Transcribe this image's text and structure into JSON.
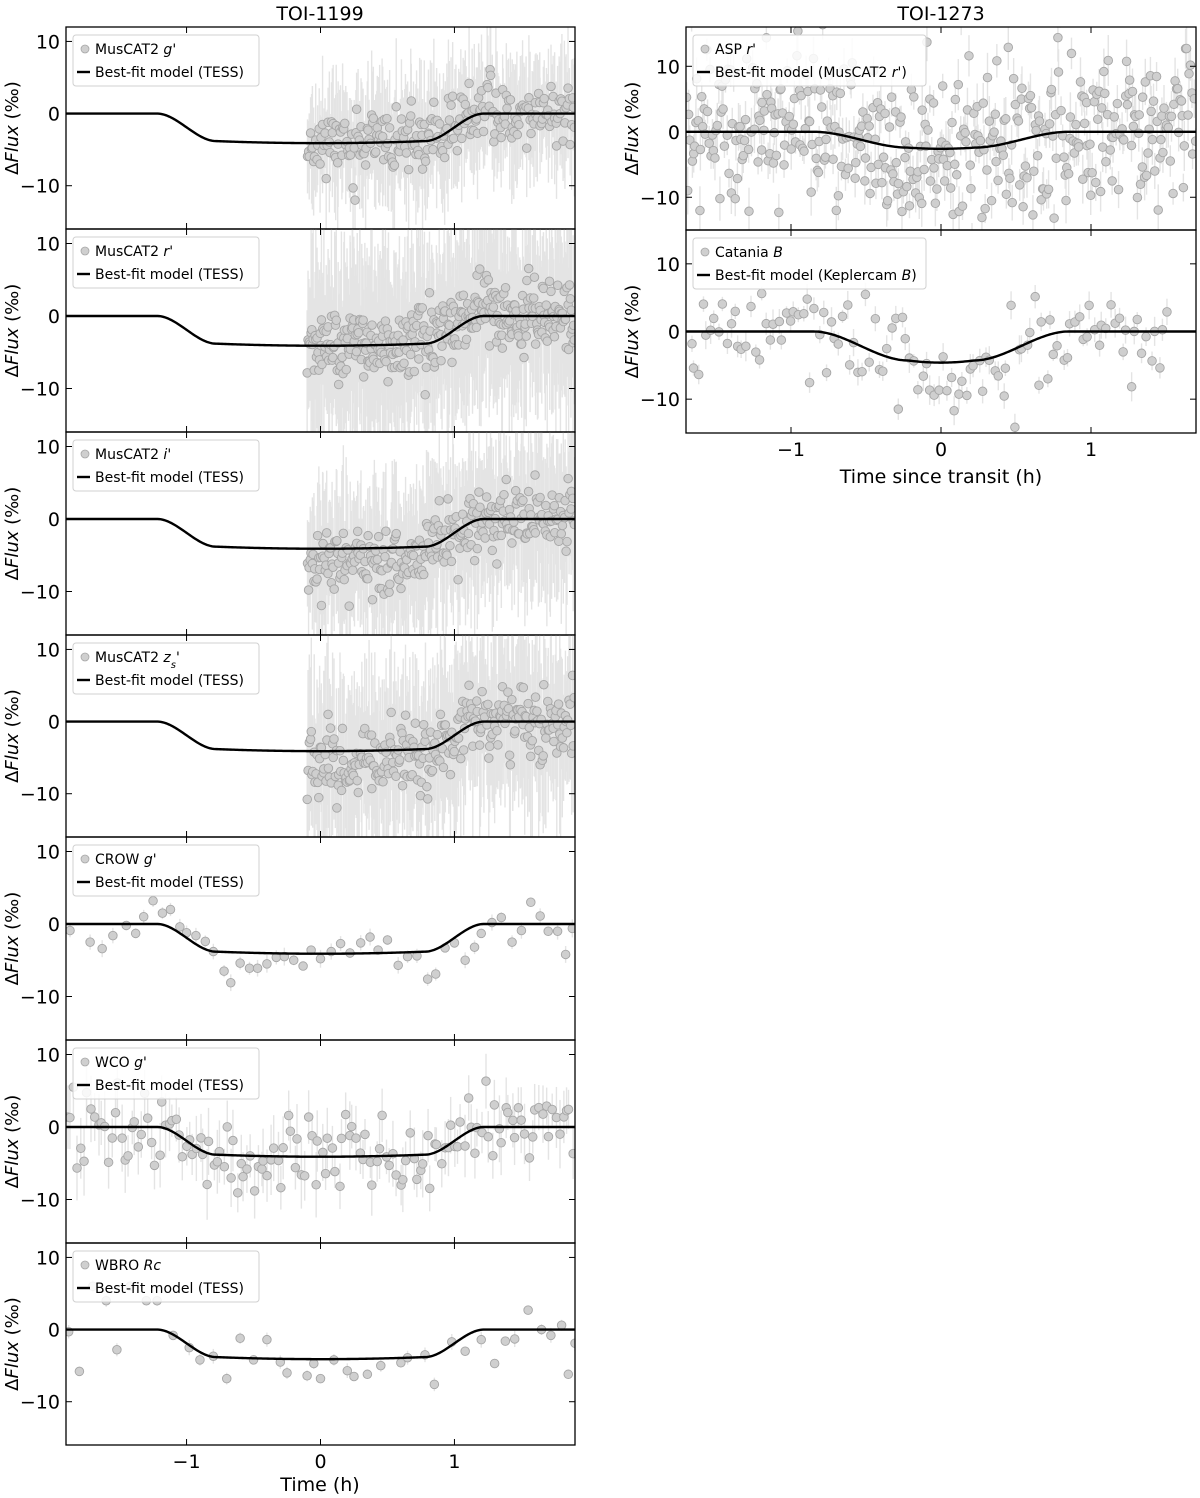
{
  "figure": {
    "left_column_title": "TOI-1199",
    "right_column_title": "TOI-1273",
    "left_xlabel": "Time (h)",
    "right_xlabel": "Time since transit (h)",
    "ylabel_prefix": "Δ",
    "ylabel_var": "Flux",
    "ylabel_unit": " (‰)"
  },
  "colors": {
    "points": "#cfcfcf",
    "point_edge": "#a6a6a6",
    "errorbars": "#e4e4e4",
    "model": "#000000"
  },
  "chart_data": [
    {
      "type": "scatter",
      "column": "TOI-1199",
      "legend": {
        "data_label": "MusCAT2 ",
        "data_label_em": "g",
        "data_label_suffix": "'",
        "model_label": "Best-fit model (TESS)"
      },
      "legend_position": "top-left",
      "xlim": [
        -1.9,
        1.9
      ],
      "ylim": [
        -16,
        12
      ],
      "xticks": [],
      "yticks": [
        -10,
        0,
        10
      ],
      "model": {
        "depth": -4.1,
        "ingress_start": -1.22,
        "ingress_end": -0.78,
        "egress_start": 0.78,
        "egress_end": 1.22
      },
      "data_range": [
        -0.1,
        1.9
      ],
      "points_count": 260,
      "scatter": 2.1,
      "error": 7,
      "seed": 11
    },
    {
      "type": "scatter",
      "column": "TOI-1199",
      "legend": {
        "data_label": "MusCAT2 ",
        "data_label_em": "r",
        "data_label_suffix": "'",
        "model_label": "Best-fit model (TESS)"
      },
      "legend_position": "top-left",
      "xlim": [
        -1.9,
        1.9
      ],
      "ylim": [
        -16,
        12
      ],
      "xticks": [],
      "yticks": [
        -10,
        0,
        10
      ],
      "model": {
        "depth": -4.1,
        "ingress_start": -1.22,
        "ingress_end": -0.78,
        "egress_start": 0.78,
        "egress_end": 1.22
      },
      "data_range": [
        -0.1,
        1.9
      ],
      "points_count": 360,
      "scatter": 2.4,
      "error": 11,
      "seed": 23
    },
    {
      "type": "scatter",
      "column": "TOI-1199",
      "legend": {
        "data_label": "MusCAT2 ",
        "data_label_em": "i",
        "data_label_suffix": "'",
        "model_label": "Best-fit model (TESS)"
      },
      "legend_position": "top-left",
      "xlim": [
        -1.9,
        1.9
      ],
      "ylim": [
        -16,
        12
      ],
      "xticks": [],
      "yticks": [
        -10,
        0,
        10
      ],
      "model": {
        "depth": -4.1,
        "ingress_start": -1.22,
        "ingress_end": -0.78,
        "egress_start": 0.78,
        "egress_end": 1.22
      },
      "data_range": [
        -0.1,
        1.9
      ],
      "points_count": 290,
      "scatter": 2.3,
      "offset": -2.2,
      "error": 9,
      "seed": 37
    },
    {
      "type": "scatter",
      "column": "TOI-1199",
      "legend": {
        "data_label": "MusCAT2 ",
        "data_label_em": "z",
        "data_label_sub": "s",
        "data_label_suffix": "'",
        "model_label": "Best-fit model (TESS)"
      },
      "legend_position": "top-left",
      "xlim": [
        -1.9,
        1.9
      ],
      "ylim": [
        -16,
        12
      ],
      "xticks": [],
      "yticks": [
        -10,
        0,
        10
      ],
      "model": {
        "depth": -4.1,
        "ingress_start": -1.22,
        "ingress_end": -0.78,
        "egress_start": 0.78,
        "egress_end": 1.22
      },
      "data_range": [
        -0.1,
        1.9
      ],
      "points_count": 290,
      "scatter": 2.4,
      "offset": -2.0,
      "error": 10,
      "seed": 51
    },
    {
      "type": "scatter",
      "column": "TOI-1199",
      "legend": {
        "data_label": "CROW ",
        "data_label_em": "g",
        "data_label_suffix": "'",
        "model_label": "Best-fit model (TESS)"
      },
      "legend_position": "top-left",
      "xlim": [
        -1.9,
        1.9
      ],
      "ylim": [
        -16,
        12
      ],
      "xticks": [],
      "yticks": [
        -10,
        0,
        10
      ],
      "model": {
        "depth": -4.1,
        "ingress_start": -1.22,
        "ingress_end": -0.78,
        "egress_start": 0.78,
        "egress_end": 1.22
      },
      "points": [
        [
          -1.87,
          -0.9
        ],
        [
          -1.72,
          -2.5
        ],
        [
          -1.63,
          -3.4
        ],
        [
          -1.55,
          -1.6
        ],
        [
          -1.45,
          -0.2
        ],
        [
          -1.38,
          -1.3
        ],
        [
          -1.32,
          1.0
        ],
        [
          -1.25,
          3.2
        ],
        [
          -1.18,
          1.5
        ],
        [
          -1.12,
          2.0
        ],
        [
          -1.05,
          -0.4
        ],
        [
          -1.0,
          -1.2
        ],
        [
          -0.93,
          -1.6
        ],
        [
          -0.86,
          -2.4
        ],
        [
          -0.8,
          -3.8
        ],
        [
          -0.72,
          -6.5
        ],
        [
          -0.67,
          -8.1
        ],
        [
          -0.6,
          -5.4
        ],
        [
          -0.53,
          -6.1
        ],
        [
          -0.47,
          -6.1
        ],
        [
          -0.4,
          -5.5
        ],
        [
          -0.33,
          -4.6
        ],
        [
          -0.27,
          -4.5
        ],
        [
          -0.2,
          -5.0
        ],
        [
          -0.13,
          -5.8
        ],
        [
          -0.07,
          -3.6
        ],
        [
          0.0,
          -4.8
        ],
        [
          0.08,
          -3.8
        ],
        [
          0.15,
          -2.7
        ],
        [
          0.22,
          -4.0
        ],
        [
          0.3,
          -2.6
        ],
        [
          0.37,
          -1.8
        ],
        [
          0.43,
          -3.6
        ],
        [
          0.5,
          -2.2
        ],
        [
          0.58,
          -5.7
        ],
        [
          0.65,
          -4.5
        ],
        [
          0.72,
          -4.4
        ],
        [
          0.8,
          -7.6
        ],
        [
          0.86,
          -6.9
        ],
        [
          0.93,
          -3.3
        ],
        [
          1.0,
          -2.6
        ],
        [
          1.08,
          -5.0
        ],
        [
          1.15,
          -3.2
        ],
        [
          1.2,
          -1.3
        ],
        [
          1.28,
          0.2
        ],
        [
          1.35,
          0.9
        ],
        [
          1.43,
          -2.5
        ],
        [
          1.5,
          -0.9
        ],
        [
          1.57,
          3.0
        ],
        [
          1.64,
          1.1
        ],
        [
          1.7,
          -1.0
        ],
        [
          1.77,
          -1.0
        ],
        [
          1.83,
          -4.2
        ],
        [
          1.88,
          -0.6
        ]
      ],
      "error": 0.9,
      "seed": 61
    },
    {
      "type": "scatter",
      "column": "TOI-1199",
      "legend": {
        "data_label": "WCO ",
        "data_label_em": "g",
        "data_label_suffix": "'",
        "model_label": "Best-fit model (TESS)"
      },
      "legend_position": "top-left",
      "xlim": [
        -1.9,
        1.9
      ],
      "ylim": [
        -16,
        12
      ],
      "xticks": [],
      "yticks": [
        -10,
        0,
        10
      ],
      "model": {
        "depth": -4.1,
        "ingress_start": -1.22,
        "ingress_end": -0.78,
        "egress_start": 0.78,
        "egress_end": 1.22
      },
      "data_range": [
        -1.9,
        1.9
      ],
      "points_count": 150,
      "scatter": 2.8,
      "error": 3.5,
      "seed": 73
    },
    {
      "type": "scatter",
      "column": "TOI-1199",
      "legend": {
        "data_label": "WBRO ",
        "data_label_em": "Rc",
        "data_label_suffix": "",
        "model_label": "Best-fit model (TESS)"
      },
      "legend_position": "top-left",
      "xlim": [
        -1.9,
        1.9
      ],
      "ylim": [
        -16,
        12
      ],
      "xticks": [
        -1,
        0,
        1
      ],
      "yticks": [
        -10,
        0,
        10
      ],
      "model": {
        "depth": -4.1,
        "ingress_start": -1.22,
        "ingress_end": -0.78,
        "egress_start": 0.78,
        "egress_end": 1.22
      },
      "points": [
        [
          -1.88,
          -0.3
        ],
        [
          -1.8,
          -5.8
        ],
        [
          -1.7,
          6.0
        ],
        [
          -1.6,
          4.0
        ],
        [
          -1.52,
          -2.8
        ],
        [
          -1.42,
          6.0
        ],
        [
          -1.3,
          4.0
        ],
        [
          -1.22,
          4.0
        ],
        [
          -1.1,
          -0.8
        ],
        [
          -0.98,
          -2.5
        ],
        [
          -0.9,
          -4.2
        ],
        [
          -0.8,
          -3.7
        ],
        [
          -0.7,
          -6.8
        ],
        [
          -0.6,
          -1.2
        ],
        [
          -0.5,
          -4.2
        ],
        [
          -0.4,
          -1.4
        ],
        [
          -0.3,
          -4.5
        ],
        [
          -0.25,
          -6.0
        ],
        [
          -0.1,
          -6.4
        ],
        [
          -0.05,
          -4.7
        ],
        [
          0.0,
          -6.8
        ],
        [
          0.1,
          -4.2
        ],
        [
          0.2,
          -5.7
        ],
        [
          0.25,
          -6.5
        ],
        [
          0.35,
          -6.2
        ],
        [
          0.45,
          -5.0
        ],
        [
          0.6,
          -4.6
        ],
        [
          0.65,
          -3.9
        ],
        [
          0.78,
          -3.5
        ],
        [
          0.85,
          -7.6
        ],
        [
          0.98,
          -1.7
        ],
        [
          1.08,
          -3.0
        ],
        [
          1.2,
          -1.4
        ],
        [
          1.3,
          -4.7
        ],
        [
          1.38,
          -1.6
        ],
        [
          1.45,
          -1.3
        ],
        [
          1.55,
          2.7
        ],
        [
          1.65,
          0.0
        ],
        [
          1.72,
          -0.8
        ],
        [
          1.8,
          0.6
        ],
        [
          1.85,
          -6.2
        ],
        [
          1.9,
          -1.9
        ]
      ],
      "error": 0.8,
      "seed": 83
    },
    {
      "type": "scatter",
      "column": "TOI-1273",
      "legend": {
        "data_label": "ASP ",
        "data_label_em": "r",
        "data_label_suffix": "'",
        "model_label": "Best-fit model (MusCAT2 ",
        "model_label_em": "r",
        "model_label_suffix": "')"
      },
      "legend_position": "top-left",
      "xlim": [
        -1.7,
        1.7
      ],
      "ylim": [
        -15,
        16
      ],
      "xticks": [],
      "yticks": [
        -10,
        0,
        10
      ],
      "model": {
        "depth": -2.6,
        "ingress_start": -0.85,
        "ingress_end": -0.22,
        "egress_start": 0.22,
        "egress_end": 0.85
      },
      "data_range": [
        -1.7,
        1.7
      ],
      "points_count": 430,
      "scatter": 6.0,
      "error": 2.8,
      "seed": 97
    },
    {
      "type": "scatter",
      "column": "TOI-1273",
      "legend": {
        "data_label": "Catania ",
        "data_label_em": "B",
        "data_label_suffix": "",
        "model_label": "Best-fit model (Keplercam ",
        "model_label_em": "B",
        "model_label_suffix": ")"
      },
      "legend_position": "top-left",
      "xlim": [
        -1.7,
        1.7
      ],
      "ylim": [
        -15,
        15
      ],
      "xticks": [
        -1,
        0,
        1
      ],
      "yticks": [
        -10,
        0,
        10
      ],
      "model": {
        "depth": -4.6,
        "ingress_start": -0.85,
        "ingress_end": -0.22,
        "egress_start": 0.22,
        "egress_end": 0.85
      },
      "data_range": [
        -1.68,
        1.52
      ],
      "points_count": 120,
      "scatter": 3.6,
      "error": 1.6,
      "seed": 109
    }
  ]
}
